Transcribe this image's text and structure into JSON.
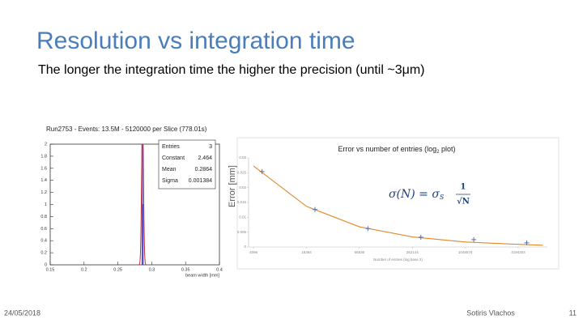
{
  "title": "Resolution vs integration time",
  "subtitle": "The longer the integration time the higher the precision (until ~3μm)",
  "footer": {
    "date": "24/05/2018",
    "author": "Sotiris Vlachos",
    "page": "11"
  },
  "chart_data": [
    {
      "type": "histogram",
      "title": "Run2753 - Events: 13.5M - 5120000 per Slice (778.01s)",
      "xlabel": "beam width [mm]",
      "bins": [
        0.2855,
        0.2865,
        0.2875
      ],
      "values": [
        2,
        1
      ],
      "color": "#3b3bd6",
      "fit_color": "#c0303a",
      "xlim": [
        0.15,
        0.4
      ],
      "xticks": [
        0.15,
        0.2,
        0.25,
        0.3,
        0.35,
        0.4
      ],
      "ylim": [
        0,
        2
      ],
      "yticks": [
        0,
        0.2,
        0.4,
        0.6,
        0.8,
        1,
        1.2,
        1.4,
        1.6,
        1.8,
        2
      ],
      "stats": [
        {
          "label": "Entries",
          "value": 3
        },
        {
          "label": "Constant",
          "value": 2.464
        },
        {
          "label": "Mean",
          "value": 0.2864
        },
        {
          "label": "Sigma",
          "value": 0.001384
        }
      ]
    },
    {
      "type": "scatter",
      "title": {
        "text": "Error vs number of entries (log",
        "sub": "2",
        "tail": " plot)"
      },
      "ylabel": "Error [mm]",
      "xlabel": "Number of entries (log base 2)",
      "log_x": 2,
      "x": [
        5120,
        20480,
        81920,
        327680,
        1310720,
        5242880
      ],
      "values": [
        0.0254,
        0.0126,
        0.0062,
        0.0033,
        0.0025,
        0.0014
      ],
      "color": "#5a6fa8",
      "fit": {
        "color": "#e0892b",
        "x": [
          4096,
          16384,
          65536,
          262144,
          1048576,
          4194304,
          8000000
        ],
        "values": [
          0.0273,
          0.0137,
          0.0068,
          0.0034,
          0.0017,
          0.0009,
          0.0006
        ]
      },
      "formula": {
        "lhs": "σ(N) = σ",
        "sub": "S",
        "num": "1",
        "den": "√N"
      },
      "xlim": [
        3600,
        9000000
      ],
      "xticks": [
        4096,
        16384,
        65536,
        262144,
        1048576,
        4194304
      ],
      "ylim": [
        0,
        0.03
      ],
      "yticks": [
        0,
        0.005,
        0.01,
        0.015,
        0.02,
        0.025,
        0.03
      ]
    }
  ]
}
